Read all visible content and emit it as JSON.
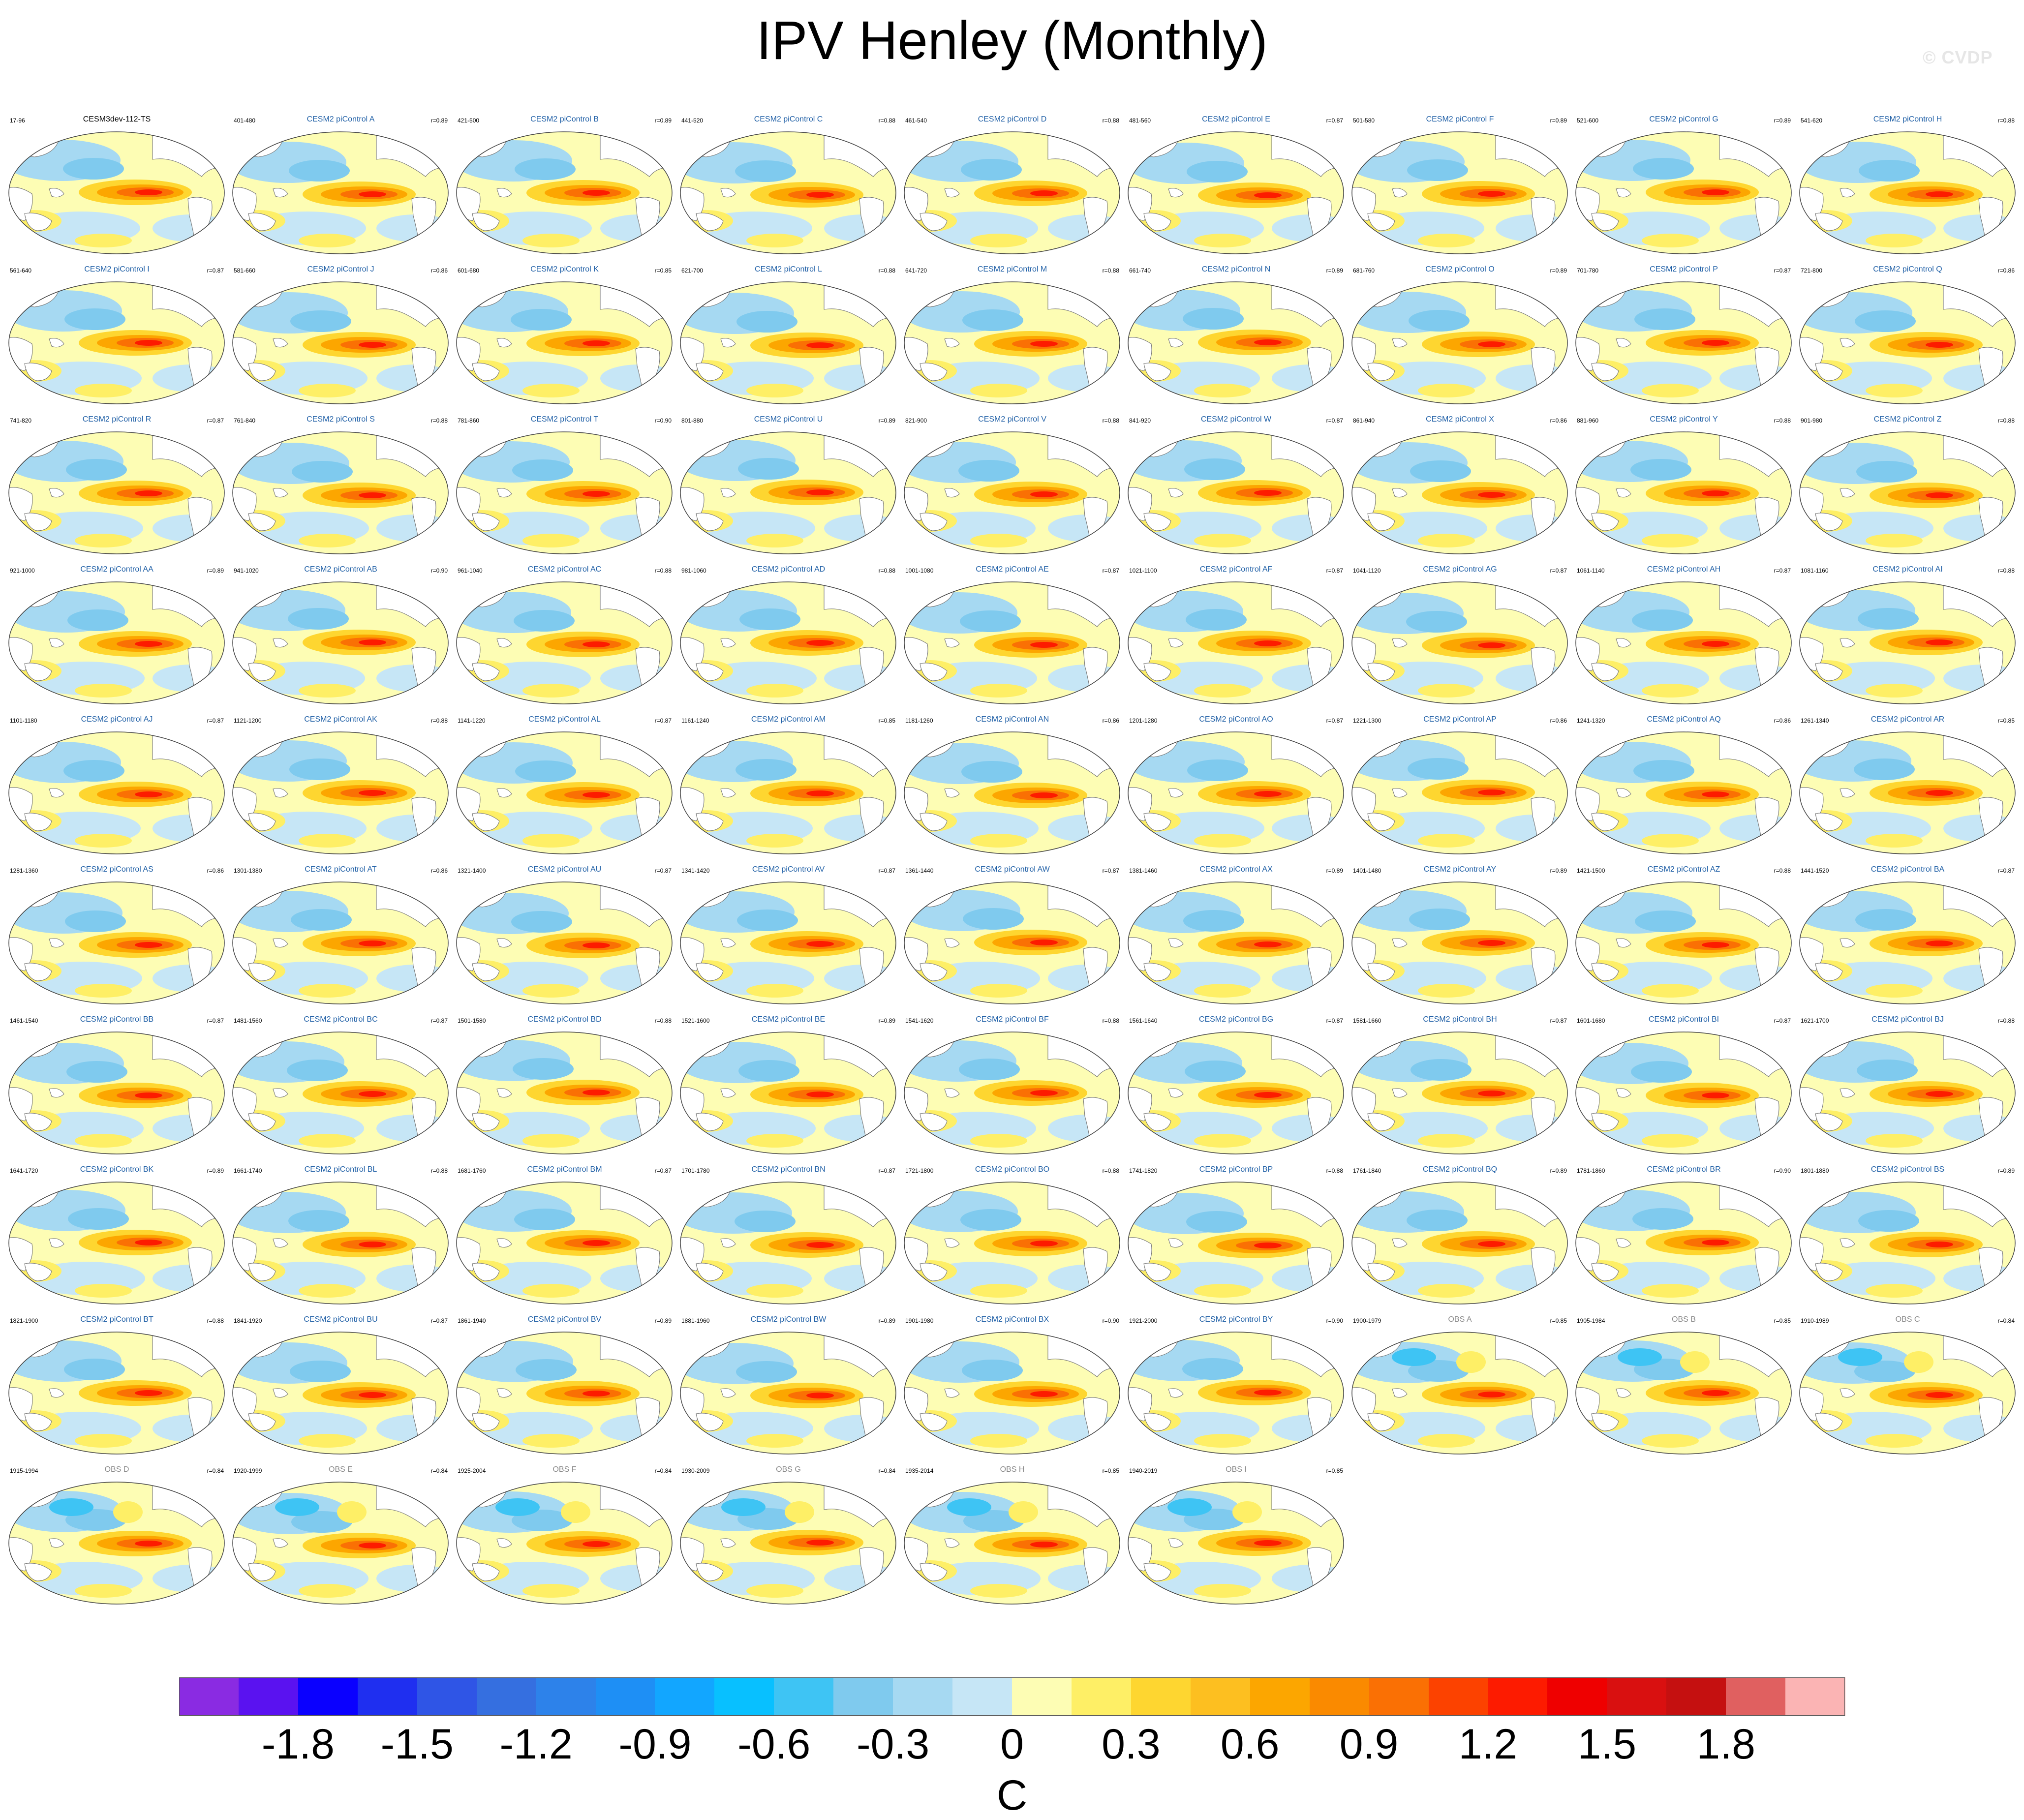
{
  "figure": {
    "title": "IPV Henley (Monthly)",
    "watermark": "© CVDP"
  },
  "chart_data": {
    "type": "heatmap",
    "title": "IPV Henley (Monthly)",
    "units": "C",
    "colorbar": {
      "tick_labels": [
        "-1.8",
        "-1.5",
        "-1.2",
        "-0.9",
        "-0.6",
        "-0.3",
        "0",
        "0.3",
        "0.6",
        "0.9",
        "1.2",
        "1.5",
        "1.8"
      ],
      "tick_values": [
        -1.8,
        -1.5,
        -1.2,
        -0.9,
        -0.6,
        -0.3,
        0,
        0.3,
        0.6,
        0.9,
        1.2,
        1.5,
        1.8
      ],
      "colors": [
        "#8a2be2",
        "#5a12f0",
        "#0a00ff",
        "#1f2ff0",
        "#2f55e6",
        "#356fe0",
        "#2d82ea",
        "#1e8ff5",
        "#12a6ff",
        "#08c0ff",
        "#3ec4f4",
        "#7fcaee",
        "#a6d9f2",
        "#c6e6f6",
        "#fdfdb4",
        "#feef66",
        "#fed630",
        "#fdbf20",
        "#fca600",
        "#fa8a00",
        "#fa7004",
        "#fc4200",
        "#fd1b00",
        "#ef0000",
        "#d91010",
        "#c51010",
        "#e06060",
        "#fbb4b4"
      ]
    },
    "panels": [
      {
        "title": "CESM3dev-112-TS",
        "period": "17-96",
        "corr": "",
        "kind": "ref"
      },
      {
        "title": "CESM2 piControl A",
        "period": "401-480",
        "corr": "r=0.89",
        "kind": "model"
      },
      {
        "title": "CESM2 piControl B",
        "period": "421-500",
        "corr": "r=0.89",
        "kind": "model"
      },
      {
        "title": "CESM2 piControl C",
        "period": "441-520",
        "corr": "r=0.88",
        "kind": "model"
      },
      {
        "title": "CESM2 piControl D",
        "period": "461-540",
        "corr": "r=0.88",
        "kind": "model"
      },
      {
        "title": "CESM2 piControl E",
        "period": "481-560",
        "corr": "r=0.87",
        "kind": "model"
      },
      {
        "title": "CESM2 piControl F",
        "period": "501-580",
        "corr": "r=0.89",
        "kind": "model"
      },
      {
        "title": "CESM2 piControl G",
        "period": "521-600",
        "corr": "r=0.89",
        "kind": "model"
      },
      {
        "title": "CESM2 piControl H",
        "period": "541-620",
        "corr": "r=0.88",
        "kind": "model"
      },
      {
        "title": "CESM2 piControl I",
        "period": "561-640",
        "corr": "r=0.87",
        "kind": "model"
      },
      {
        "title": "CESM2 piControl J",
        "period": "581-660",
        "corr": "r=0.86",
        "kind": "model"
      },
      {
        "title": "CESM2 piControl K",
        "period": "601-680",
        "corr": "r=0.85",
        "kind": "model"
      },
      {
        "title": "CESM2 piControl L",
        "period": "621-700",
        "corr": "r=0.88",
        "kind": "model"
      },
      {
        "title": "CESM2 piControl M",
        "period": "641-720",
        "corr": "r=0.88",
        "kind": "model"
      },
      {
        "title": "CESM2 piControl N",
        "period": "661-740",
        "corr": "r=0.89",
        "kind": "model"
      },
      {
        "title": "CESM2 piControl O",
        "period": "681-760",
        "corr": "r=0.89",
        "kind": "model"
      },
      {
        "title": "CESM2 piControl P",
        "period": "701-780",
        "corr": "r=0.87",
        "kind": "model"
      },
      {
        "title": "CESM2 piControl Q",
        "period": "721-800",
        "corr": "r=0.86",
        "kind": "model"
      },
      {
        "title": "CESM2 piControl R",
        "period": "741-820",
        "corr": "r=0.87",
        "kind": "model"
      },
      {
        "title": "CESM2 piControl S",
        "period": "761-840",
        "corr": "r=0.88",
        "kind": "model"
      },
      {
        "title": "CESM2 piControl T",
        "period": "781-860",
        "corr": "r=0.90",
        "kind": "model"
      },
      {
        "title": "CESM2 piControl U",
        "period": "801-880",
        "corr": "r=0.89",
        "kind": "model"
      },
      {
        "title": "CESM2 piControl V",
        "period": "821-900",
        "corr": "r=0.88",
        "kind": "model"
      },
      {
        "title": "CESM2 piControl W",
        "period": "841-920",
        "corr": "r=0.87",
        "kind": "model"
      },
      {
        "title": "CESM2 piControl X",
        "period": "861-940",
        "corr": "r=0.86",
        "kind": "model"
      },
      {
        "title": "CESM2 piControl Y",
        "period": "881-960",
        "corr": "r=0.88",
        "kind": "model"
      },
      {
        "title": "CESM2 piControl Z",
        "period": "901-980",
        "corr": "r=0.88",
        "kind": "model"
      },
      {
        "title": "CESM2 piControl AA",
        "period": "921-1000",
        "corr": "r=0.89",
        "kind": "model"
      },
      {
        "title": "CESM2 piControl AB",
        "period": "941-1020",
        "corr": "r=0.90",
        "kind": "model"
      },
      {
        "title": "CESM2 piControl AC",
        "period": "961-1040",
        "corr": "r=0.88",
        "kind": "model"
      },
      {
        "title": "CESM2 piControl AD",
        "period": "981-1060",
        "corr": "r=0.88",
        "kind": "model"
      },
      {
        "title": "CESM2 piControl AE",
        "period": "1001-1080",
        "corr": "r=0.87",
        "kind": "model"
      },
      {
        "title": "CESM2 piControl AF",
        "period": "1021-1100",
        "corr": "r=0.87",
        "kind": "model"
      },
      {
        "title": "CESM2 piControl AG",
        "period": "1041-1120",
        "corr": "r=0.87",
        "kind": "model"
      },
      {
        "title": "CESM2 piControl AH",
        "period": "1061-1140",
        "corr": "r=0.87",
        "kind": "model"
      },
      {
        "title": "CESM2 piControl AI",
        "period": "1081-1160",
        "corr": "r=0.88",
        "kind": "model"
      },
      {
        "title": "CESM2 piControl AJ",
        "period": "1101-1180",
        "corr": "r=0.87",
        "kind": "model"
      },
      {
        "title": "CESM2 piControl AK",
        "period": "1121-1200",
        "corr": "r=0.88",
        "kind": "model"
      },
      {
        "title": "CESM2 piControl AL",
        "period": "1141-1220",
        "corr": "r=0.87",
        "kind": "model"
      },
      {
        "title": "CESM2 piControl AM",
        "period": "1161-1240",
        "corr": "r=0.85",
        "kind": "model"
      },
      {
        "title": "CESM2 piControl AN",
        "period": "1181-1260",
        "corr": "r=0.86",
        "kind": "model"
      },
      {
        "title": "CESM2 piControl AO",
        "period": "1201-1280",
        "corr": "r=0.87",
        "kind": "model"
      },
      {
        "title": "CESM2 piControl AP",
        "period": "1221-1300",
        "corr": "r=0.86",
        "kind": "model"
      },
      {
        "title": "CESM2 piControl AQ",
        "period": "1241-1320",
        "corr": "r=0.86",
        "kind": "model"
      },
      {
        "title": "CESM2 piControl AR",
        "period": "1261-1340",
        "corr": "r=0.85",
        "kind": "model"
      },
      {
        "title": "CESM2 piControl AS",
        "period": "1281-1360",
        "corr": "r=0.86",
        "kind": "model"
      },
      {
        "title": "CESM2 piControl AT",
        "period": "1301-1380",
        "corr": "r=0.86",
        "kind": "model"
      },
      {
        "title": "CESM2 piControl AU",
        "period": "1321-1400",
        "corr": "r=0.87",
        "kind": "model"
      },
      {
        "title": "CESM2 piControl AV",
        "period": "1341-1420",
        "corr": "r=0.87",
        "kind": "model"
      },
      {
        "title": "CESM2 piControl AW",
        "period": "1361-1440",
        "corr": "r=0.87",
        "kind": "model"
      },
      {
        "title": "CESM2 piControl AX",
        "period": "1381-1460",
        "corr": "r=0.89",
        "kind": "model"
      },
      {
        "title": "CESM2 piControl AY",
        "period": "1401-1480",
        "corr": "r=0.89",
        "kind": "model"
      },
      {
        "title": "CESM2 piControl AZ",
        "period": "1421-1500",
        "corr": "r=0.88",
        "kind": "model"
      },
      {
        "title": "CESM2 piControl BA",
        "period": "1441-1520",
        "corr": "r=0.87",
        "kind": "model"
      },
      {
        "title": "CESM2 piControl BB",
        "period": "1461-1540",
        "corr": "r=0.87",
        "kind": "model"
      },
      {
        "title": "CESM2 piControl BC",
        "period": "1481-1560",
        "corr": "r=0.87",
        "kind": "model"
      },
      {
        "title": "CESM2 piControl BD",
        "period": "1501-1580",
        "corr": "r=0.88",
        "kind": "model"
      },
      {
        "title": "CESM2 piControl BE",
        "period": "1521-1600",
        "corr": "r=0.89",
        "kind": "model"
      },
      {
        "title": "CESM2 piControl BF",
        "period": "1541-1620",
        "corr": "r=0.88",
        "kind": "model"
      },
      {
        "title": "CESM2 piControl BG",
        "period": "1561-1640",
        "corr": "r=0.87",
        "kind": "model"
      },
      {
        "title": "CESM2 piControl BH",
        "period": "1581-1660",
        "corr": "r=0.87",
        "kind": "model"
      },
      {
        "title": "CESM2 piControl BI",
        "period": "1601-1680",
        "corr": "r=0.87",
        "kind": "model"
      },
      {
        "title": "CESM2 piControl BJ",
        "period": "1621-1700",
        "corr": "r=0.88",
        "kind": "model"
      },
      {
        "title": "CESM2 piControl BK",
        "period": "1641-1720",
        "corr": "r=0.89",
        "kind": "model"
      },
      {
        "title": "CESM2 piControl BL",
        "period": "1661-1740",
        "corr": "r=0.88",
        "kind": "model"
      },
      {
        "title": "CESM2 piControl BM",
        "period": "1681-1760",
        "corr": "r=0.87",
        "kind": "model"
      },
      {
        "title": "CESM2 piControl BN",
        "period": "1701-1780",
        "corr": "r=0.87",
        "kind": "model"
      },
      {
        "title": "CESM2 piControl BO",
        "period": "1721-1800",
        "corr": "r=0.88",
        "kind": "model"
      },
      {
        "title": "CESM2 piControl BP",
        "period": "1741-1820",
        "corr": "r=0.88",
        "kind": "model"
      },
      {
        "title": "CESM2 piControl BQ",
        "period": "1761-1840",
        "corr": "r=0.89",
        "kind": "model"
      },
      {
        "title": "CESM2 piControl BR",
        "period": "1781-1860",
        "corr": "r=0.90",
        "kind": "model"
      },
      {
        "title": "CESM2 piControl BS",
        "period": "1801-1880",
        "corr": "r=0.89",
        "kind": "model"
      },
      {
        "title": "CESM2 piControl BT",
        "period": "1821-1900",
        "corr": "r=0.88",
        "kind": "model"
      },
      {
        "title": "CESM2 piControl BU",
        "period": "1841-1920",
        "corr": "r=0.87",
        "kind": "model"
      },
      {
        "title": "CESM2 piControl BV",
        "period": "1861-1940",
        "corr": "r=0.89",
        "kind": "model"
      },
      {
        "title": "CESM2 piControl BW",
        "period": "1881-1960",
        "corr": "r=0.89",
        "kind": "model"
      },
      {
        "title": "CESM2 piControl BX",
        "period": "1901-1980",
        "corr": "r=0.90",
        "kind": "model"
      },
      {
        "title": "CESM2 piControl BY",
        "period": "1921-2000",
        "corr": "r=0.90",
        "kind": "model"
      },
      {
        "title": "OBS A",
        "period": "1900-1979",
        "corr": "r=0.85",
        "kind": "obs"
      },
      {
        "title": "OBS B",
        "period": "1905-1984",
        "corr": "r=0.85",
        "kind": "obs"
      },
      {
        "title": "OBS C",
        "period": "1910-1989",
        "corr": "r=0.84",
        "kind": "obs"
      },
      {
        "title": "OBS D",
        "period": "1915-1994",
        "corr": "r=0.84",
        "kind": "obs"
      },
      {
        "title": "OBS E",
        "period": "1920-1999",
        "corr": "r=0.84",
        "kind": "obs"
      },
      {
        "title": "OBS F",
        "period": "1925-2004",
        "corr": "r=0.84",
        "kind": "obs"
      },
      {
        "title": "OBS G",
        "period": "1930-2009",
        "corr": "r=0.84",
        "kind": "obs"
      },
      {
        "title": "OBS H",
        "period": "1935-2014",
        "corr": "r=0.85",
        "kind": "obs"
      },
      {
        "title": "OBS I",
        "period": "1940-2019",
        "corr": "r=0.85",
        "kind": "obs"
      }
    ]
  }
}
